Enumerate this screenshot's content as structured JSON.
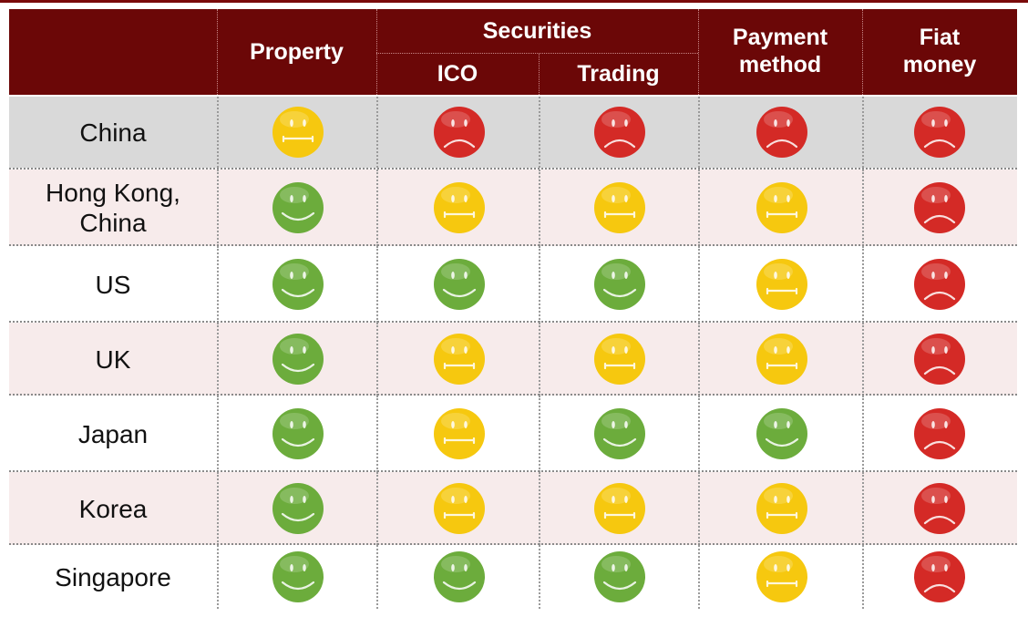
{
  "header": {
    "property": "Property",
    "securities": "Securities",
    "ico": "ICO",
    "trading": "Trading",
    "payment": "Payment method",
    "fiat": "Fiat money"
  },
  "legend_colors": {
    "green": "#6cac3c",
    "yellow": "#f6c80f",
    "red": "#d42a26"
  },
  "rows": [
    {
      "country": "China",
      "statuses": [
        "yellow",
        "red",
        "red",
        "red",
        "red"
      ],
      "bg": "#d9d9d9"
    },
    {
      "country": "Hong Kong, China",
      "statuses": [
        "green",
        "yellow",
        "yellow",
        "yellow",
        "red"
      ],
      "bg": "#f7ebeb"
    },
    {
      "country": "US",
      "statuses": [
        "green",
        "green",
        "green",
        "yellow",
        "red"
      ],
      "bg": "#ffffff"
    },
    {
      "country": "UK",
      "statuses": [
        "green",
        "yellow",
        "yellow",
        "yellow",
        "red"
      ],
      "bg": "#f7ebeb"
    },
    {
      "country": "Japan",
      "statuses": [
        "green",
        "yellow",
        "green",
        "green",
        "red"
      ],
      "bg": "#ffffff"
    },
    {
      "country": "Korea",
      "statuses": [
        "green",
        "yellow",
        "yellow",
        "yellow",
        "red"
      ],
      "bg": "#f7ebeb"
    },
    {
      "country": "Singapore",
      "statuses": [
        "green",
        "green",
        "green",
        "yellow",
        "red"
      ],
      "bg": "#ffffff"
    }
  ]
}
